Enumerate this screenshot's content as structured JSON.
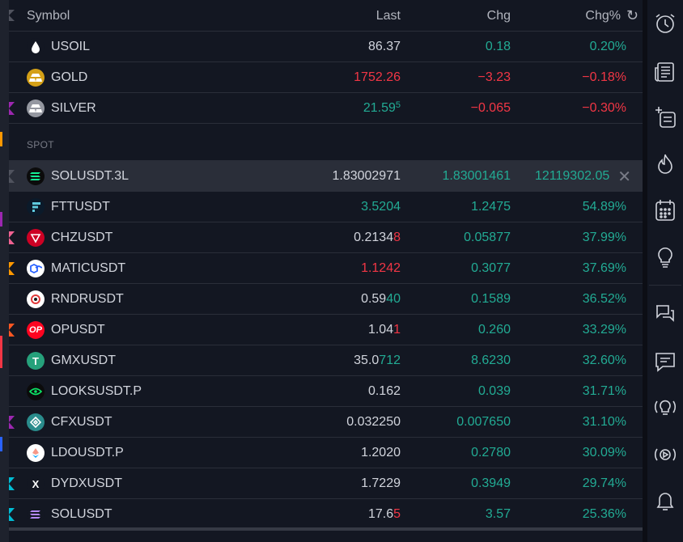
{
  "header": {
    "symbol": "Symbol",
    "last": "Last",
    "chg": "Chg",
    "chg_pct": "Chg%",
    "refresh_icon": "refresh-icon"
  },
  "rows_top": [
    {
      "symbol": "USOIL",
      "icon": "oil-drop-icon",
      "last": "86.37",
      "last_class": "neu",
      "chg": "0.18",
      "chg_class": "pos",
      "pct": "0.20%",
      "pct_class": "pos"
    },
    {
      "symbol": "GOLD",
      "icon": "gold-bars-icon",
      "last": "1752.26",
      "last_class": "neg",
      "chg": "−3.23",
      "chg_class": "neg",
      "pct": "−0.18%",
      "pct_class": "neg"
    },
    {
      "symbol": "SILVER",
      "icon": "silver-bars-icon",
      "last_main": "21.59",
      "last_sup": "5",
      "last_class": "pos",
      "chg": "−0.065",
      "chg_class": "neg",
      "pct": "−0.30%",
      "pct_class": "neg",
      "flag": "#9c27b0"
    }
  ],
  "section_label": "SPOT",
  "rows_spot": [
    {
      "symbol": "SOLUSDT.3L",
      "icon": "solana-icon",
      "last": "1.83002971",
      "last_class": "neu",
      "chg": "1.83001461",
      "chg_class": "pos",
      "pct": "12119302.05",
      "pct_class": "pos",
      "flag": "#50535e",
      "selected": true
    },
    {
      "symbol": "FTTUSDT",
      "icon": "ftx-icon",
      "last": "3.5204",
      "last_class": "pos",
      "chg": "1.2475",
      "chg_class": "pos",
      "pct": "54.89%",
      "pct_class": "pos"
    },
    {
      "symbol": "CHZUSDT",
      "icon": "chiliz-icon",
      "last_a": "0.2134",
      "last_b": "8",
      "last_class": "neu",
      "last_b_class": "neg",
      "chg": "0.05877",
      "chg_class": "pos",
      "pct": "37.99%",
      "pct_class": "pos",
      "flag": "#f06292"
    },
    {
      "symbol": "MATICUSDT",
      "icon": "polygon-icon",
      "last": "1.1242",
      "last_class": "neg",
      "chg": "0.3077",
      "chg_class": "pos",
      "pct": "37.69%",
      "pct_class": "pos",
      "flag": "#ff9800"
    },
    {
      "symbol": "RNDRUSDT",
      "icon": "render-icon",
      "last_a": "0.59",
      "last_b": "40",
      "last_class": "neu",
      "last_b_class": "pos",
      "chg": "0.1589",
      "chg_class": "pos",
      "pct": "36.52%",
      "pct_class": "pos"
    },
    {
      "symbol": "OPUSDT",
      "icon": "optimism-icon",
      "last_a": "1.04",
      "last_b": "1",
      "last_class": "neu",
      "last_b_class": "neg",
      "chg": "0.260",
      "chg_class": "pos",
      "pct": "33.29%",
      "pct_class": "pos",
      "flag": "#ff5722",
      "icon_text": "OP"
    },
    {
      "symbol": "GMXUSDT",
      "icon": "tether-icon",
      "last_a": "35.0",
      "last_b": "712",
      "last_class": "neu",
      "last_b_class": "pos",
      "chg": "8.6230",
      "chg_class": "pos",
      "pct": "32.60%",
      "pct_class": "pos",
      "icon_text": "T"
    },
    {
      "symbol": "LOOKSUSDT.P",
      "icon": "looksrare-eye-icon",
      "last": "0.162",
      "last_class": "neu",
      "chg": "0.039",
      "chg_class": "pos",
      "pct": "31.71%",
      "pct_class": "pos"
    },
    {
      "symbol": "CFXUSDT",
      "icon": "conflux-icon",
      "last": "0.032250",
      "last_class": "neu",
      "chg": "0.007650",
      "chg_class": "pos",
      "pct": "31.10%",
      "pct_class": "pos",
      "flag": "#9c27b0"
    },
    {
      "symbol": "LDOUSDT.P",
      "icon": "lido-icon",
      "last": "1.2020",
      "last_class": "neu",
      "chg": "0.2780",
      "chg_class": "pos",
      "pct": "30.09%",
      "pct_class": "pos"
    },
    {
      "symbol": "DYDXUSDT",
      "icon": "dydx-icon",
      "last": "1.7229",
      "last_class": "neu",
      "chg": "0.3949",
      "chg_class": "pos",
      "pct": "29.74%",
      "pct_class": "pos",
      "flag": "#00bcd4",
      "icon_text": "X"
    },
    {
      "symbol": "SOLUSDT",
      "icon": "solana-icon",
      "last_a": "17.6",
      "last_b": "5",
      "last_class": "neu",
      "last_b_class": "neg",
      "chg": "3.57",
      "chg_class": "pos",
      "pct": "25.36%",
      "pct_class": "pos",
      "flag": "#00bcd4"
    }
  ],
  "toolbar": [
    "alarm-clock-icon",
    "news-icon",
    "add-list-icon",
    "hotlist-fire-icon",
    "calendar-icon",
    "ideas-lightbulb-icon",
    "chats-icon",
    "private-chat-icon",
    "ideas-stream-icon",
    "streams-play-icon",
    "notifications-bell-icon"
  ],
  "colors": {
    "positive": "#22ab94",
    "negative": "#f23645",
    "background": "#131722"
  }
}
